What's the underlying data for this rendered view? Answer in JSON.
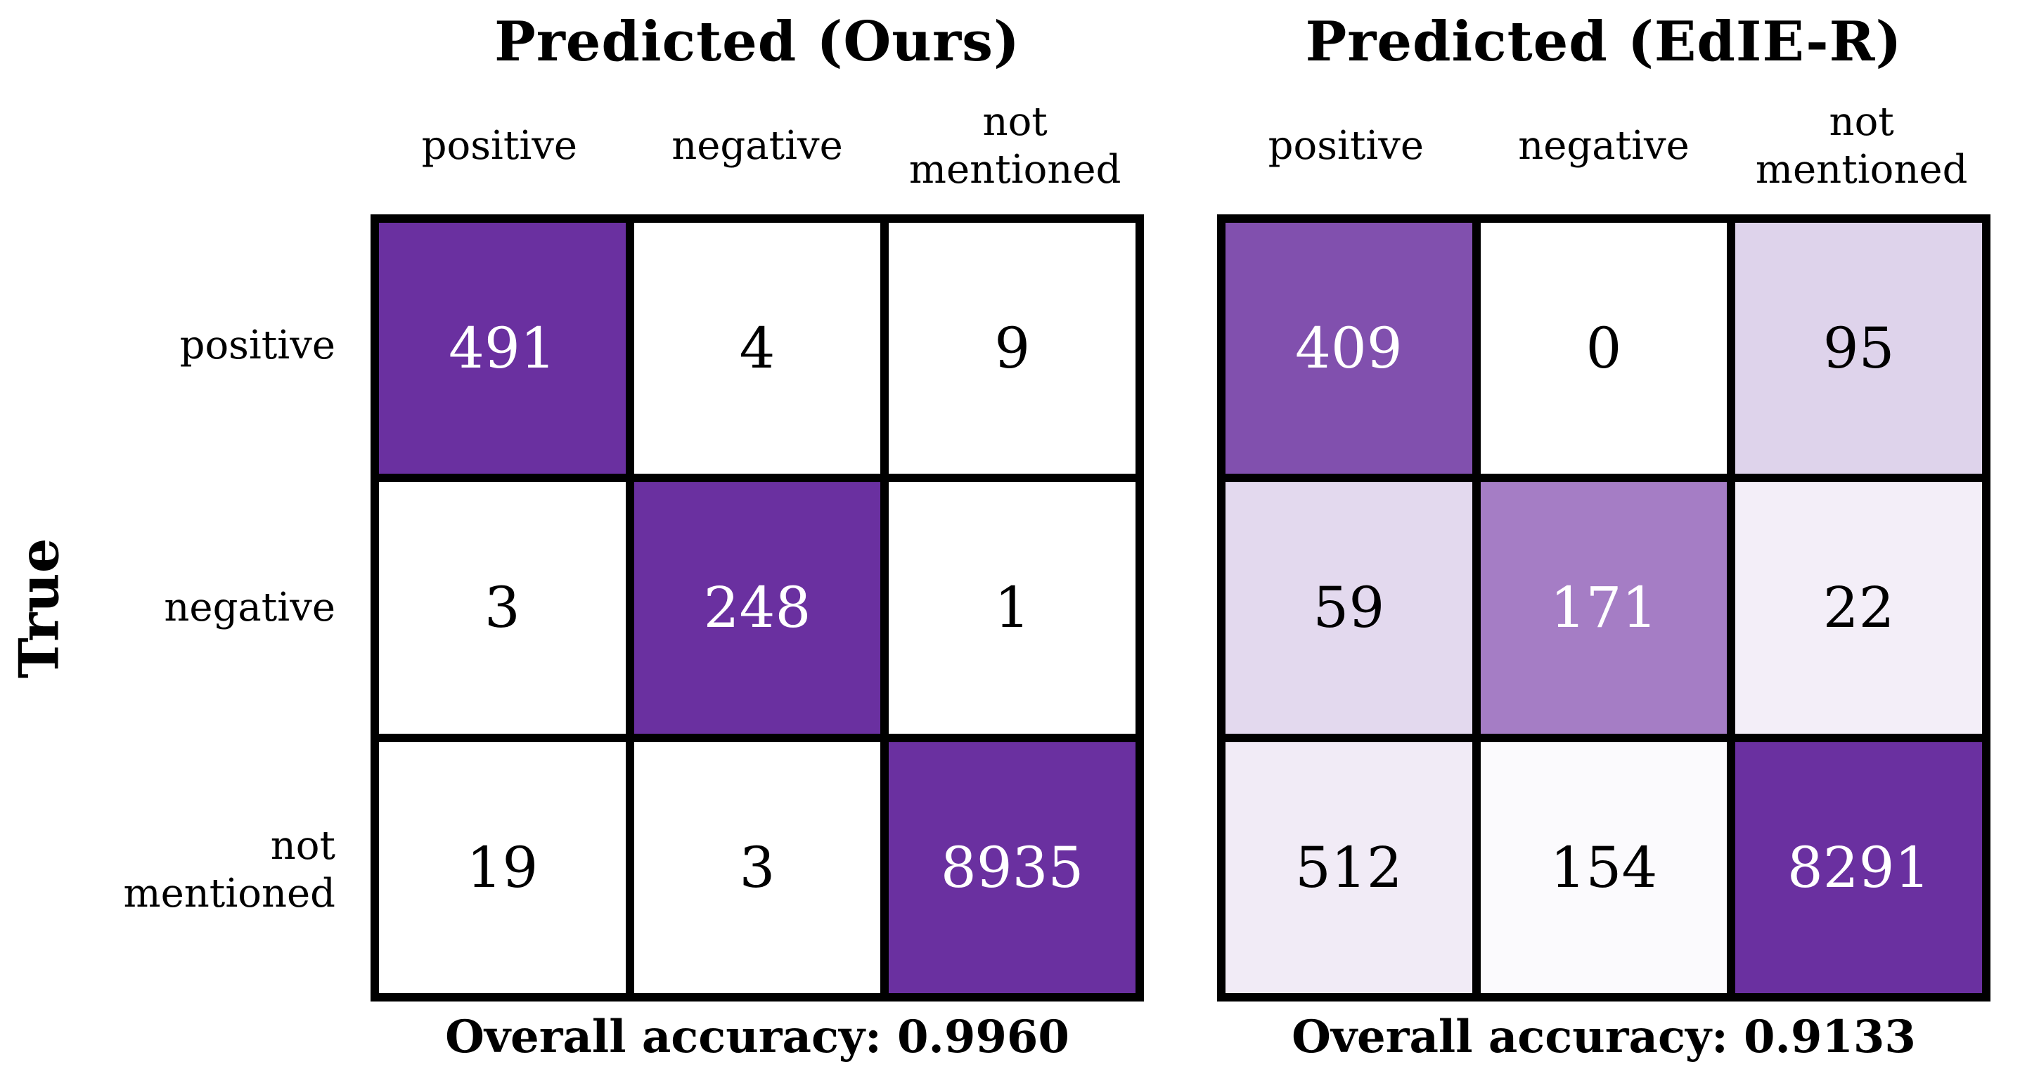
{
  "figure": {
    "y_axis_label": "True",
    "background_color": "#ffffff",
    "grid_line_color": "#000000",
    "diagonal_color": "#6a30a0"
  },
  "panels": [
    {
      "title": "Predicted (Ours)",
      "col_labels": [
        "positive",
        "negative",
        "not mentioned"
      ],
      "row_labels": [
        "positive",
        "negative",
        "not mentioned"
      ],
      "values": [
        [
          "491",
          "4",
          "9"
        ],
        [
          "3",
          "248",
          "1"
        ],
        [
          "19",
          "3",
          "8935"
        ]
      ],
      "bg": [
        [
          "#6a30a0",
          "#ffffff",
          "#ffffff"
        ],
        [
          "#ffffff",
          "#6a30a0",
          "#ffffff"
        ],
        [
          "#ffffff",
          "#ffffff",
          "#6a30a0"
        ]
      ],
      "fg": [
        [
          "#ffffff",
          "#000000",
          "#000000"
        ],
        [
          "#000000",
          "#ffffff",
          "#000000"
        ],
        [
          "#000000",
          "#000000",
          "#ffffff"
        ]
      ],
      "accuracy_label": "Overall accuracy: 0.9960"
    },
    {
      "title": "Predicted (EdIE-R)",
      "col_labels": [
        "positive",
        "negative",
        "not mentioned"
      ],
      "row_labels": [
        "positive",
        "negative",
        "not mentioned"
      ],
      "values": [
        [
          "409",
          "0",
          "95"
        ],
        [
          "59",
          "171",
          "22"
        ],
        [
          "512",
          "154",
          "8291"
        ]
      ],
      "bg": [
        [
          "#8150ae",
          "#ffffff",
          "#ded3eb"
        ],
        [
          "#e3d9ee",
          "#a57dc5",
          "#f3eef8"
        ],
        [
          "#f1ebf6",
          "#fbfafd",
          "#6a30a0"
        ]
      ],
      "fg": [
        [
          "#ffffff",
          "#000000",
          "#000000"
        ],
        [
          "#000000",
          "#ffffff",
          "#000000"
        ],
        [
          "#000000",
          "#000000",
          "#ffffff"
        ]
      ],
      "accuracy_label": "Overall accuracy: 0.9133"
    }
  ],
  "chart_data": [
    {
      "type": "heatmap",
      "title": "Predicted (Ours)",
      "x_categories": [
        "positive",
        "negative",
        "not mentioned"
      ],
      "y_categories": [
        "positive",
        "negative",
        "not mentioned"
      ],
      "ylabel": "True",
      "values": [
        [
          491,
          4,
          9
        ],
        [
          3,
          248,
          1
        ],
        [
          19,
          3,
          8935
        ]
      ],
      "annotation": "Overall accuracy: 0.9960",
      "colormap": "white-to-purple",
      "grid": true
    },
    {
      "type": "heatmap",
      "title": "Predicted (EdIE-R)",
      "x_categories": [
        "positive",
        "negative",
        "not mentioned"
      ],
      "y_categories": [
        "positive",
        "negative",
        "not mentioned"
      ],
      "ylabel": "True",
      "values": [
        [
          409,
          0,
          95
        ],
        [
          59,
          171,
          22
        ],
        [
          512,
          154,
          8291
        ]
      ],
      "annotation": "Overall accuracy: 0.9133",
      "colormap": "white-to-purple",
      "grid": true
    }
  ]
}
